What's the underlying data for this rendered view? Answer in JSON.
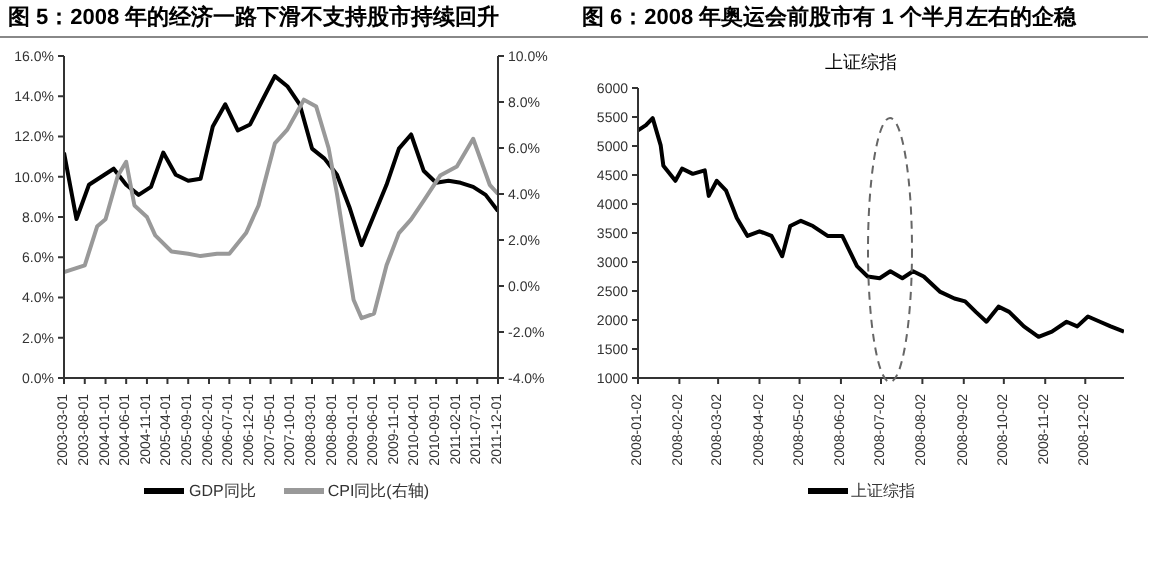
{
  "chart_data": [
    {
      "type": "line",
      "title": "图 5：2008 年的经济一路下滑不支持股市持续回升",
      "legend": "bottom",
      "xlim": [
        "2003-03-01",
        "2011-12-01"
      ],
      "xticks": [
        "2003-03-01",
        "2003-08-01",
        "2004-01-01",
        "2004-06-01",
        "2004-11-01",
        "2005-04-01",
        "2005-09-01",
        "2006-02-01",
        "2006-07-01",
        "2006-12-01",
        "2007-05-01",
        "2007-10-01",
        "2008-03-01",
        "2008-08-01",
        "2009-01-01",
        "2009-06-01",
        "2009-11-01",
        "2010-04-01",
        "2010-09-01",
        "2011-02-01",
        "2011-07-01",
        "2011-12-01"
      ],
      "ylim": [
        0,
        16
      ],
      "yticks": [
        {
          "value": 0,
          "label": "0.0%"
        },
        {
          "value": 2,
          "label": "2.0%"
        },
        {
          "value": 4,
          "label": "4.0%"
        },
        {
          "value": 6,
          "label": "6.0%"
        },
        {
          "value": 8,
          "label": "8.0%"
        },
        {
          "value": 10,
          "label": "10.0%"
        },
        {
          "value": 12,
          "label": "12.0%"
        },
        {
          "value": 14,
          "label": "14.0%"
        },
        {
          "value": 16,
          "label": "16.0%"
        }
      ],
      "y2lim": [
        -4,
        10
      ],
      "y2ticks": [
        {
          "value": -4,
          "label": "-4.0%"
        },
        {
          "value": -2,
          "label": "-2.0%"
        },
        {
          "value": 0,
          "label": "0.0%"
        },
        {
          "value": 2,
          "label": "2.0%"
        },
        {
          "value": 4,
          "label": "4.0%"
        },
        {
          "value": 6,
          "label": "6.0%"
        },
        {
          "value": 8,
          "label": "8.0%"
        },
        {
          "value": 10,
          "label": "10.0%"
        }
      ],
      "series": [
        {
          "name": "GDP同比",
          "color": "#000000",
          "x": [
            "2003-03",
            "2003-06",
            "2003-09",
            "2003-12",
            "2004-03",
            "2004-06",
            "2004-09",
            "2004-12",
            "2005-03",
            "2005-06",
            "2005-09",
            "2005-12",
            "2006-03",
            "2006-06",
            "2006-09",
            "2006-12",
            "2007-03",
            "2007-06",
            "2007-09",
            "2007-12",
            "2008-03",
            "2008-06",
            "2008-09",
            "2008-12",
            "2009-03",
            "2009-06",
            "2009-09",
            "2009-12",
            "2010-03",
            "2010-06",
            "2010-09",
            "2010-12",
            "2011-03",
            "2011-06",
            "2011-09",
            "2011-12"
          ],
          "values": [
            11.2,
            7.9,
            9.6,
            10.0,
            10.4,
            9.6,
            9.1,
            9.5,
            11.2,
            10.1,
            9.8,
            9.9,
            12.5,
            13.6,
            12.3,
            12.6,
            13.8,
            15.0,
            14.5,
            13.6,
            11.4,
            10.9,
            10.1,
            8.5,
            6.6,
            8.1,
            9.6,
            11.4,
            12.1,
            10.3,
            9.7,
            9.8,
            9.7,
            9.5,
            9.1,
            8.3
          ]
        },
        {
          "name": "CPI同比(右轴)",
          "color": "#999999",
          "axis": "y2",
          "x": [
            "2003-03",
            "2003-08",
            "2003-11",
            "2004-01",
            "2004-04",
            "2004-06",
            "2004-08",
            "2004-11",
            "2005-01",
            "2005-05",
            "2005-09",
            "2005-12",
            "2006-04",
            "2006-07",
            "2006-11",
            "2007-02",
            "2007-06",
            "2007-09",
            "2008-01",
            "2008-04",
            "2008-07",
            "2008-09",
            "2009-01",
            "2009-03",
            "2009-06",
            "2009-09",
            "2009-12",
            "2010-03",
            "2010-06",
            "2010-10",
            "2011-02",
            "2011-06",
            "2011-08",
            "2011-10",
            "2011-12"
          ],
          "values": [
            0.6,
            0.9,
            2.6,
            2.9,
            4.8,
            5.4,
            3.5,
            3.0,
            2.2,
            1.5,
            1.4,
            1.3,
            1.4,
            1.4,
            2.3,
            3.5,
            6.2,
            6.8,
            8.1,
            7.8,
            6.0,
            4.0,
            -0.6,
            -1.4,
            -1.2,
            0.9,
            2.3,
            2.9,
            3.7,
            4.8,
            5.2,
            6.4,
            5.4,
            4.4,
            4.0
          ]
        }
      ]
    },
    {
      "type": "line",
      "title": "图 6：2008 年奥运会前股市有 1 个半月左右的企稳",
      "subtitle": "上证综指",
      "legend": "bottom",
      "xlim": [
        "2008-01-02",
        "2008-12-31"
      ],
      "xticks": [
        "2008-01-02",
        "2008-02-02",
        "2008-03-02",
        "2008-04-02",
        "2008-05-02",
        "2008-06-02",
        "2008-07-02",
        "2008-08-02",
        "2008-09-02",
        "2008-10-02",
        "2008-11-02",
        "2008-12-02"
      ],
      "ylim": [
        1000,
        6000
      ],
      "yticks": [
        1000,
        1500,
        2000,
        2500,
        3000,
        3500,
        4000,
        4500,
        5000,
        5500,
        6000
      ],
      "series": [
        {
          "name": "上证综指",
          "color": "#000000",
          "x": [
            "2008-01-02",
            "2008-01-08",
            "2008-01-13",
            "2008-01-19",
            "2008-01-21",
            "2008-01-30",
            "2008-02-04",
            "2008-02-12",
            "2008-02-21",
            "2008-02-24",
            "2008-03-01",
            "2008-03-08",
            "2008-03-16",
            "2008-03-24",
            "2008-04-02",
            "2008-04-11",
            "2008-04-19",
            "2008-04-25",
            "2008-05-03",
            "2008-05-12",
            "2008-05-23",
            "2008-06-03",
            "2008-06-14",
            "2008-06-22",
            "2008-07-01",
            "2008-07-09",
            "2008-07-18",
            "2008-07-26",
            "2008-08-03",
            "2008-08-15",
            "2008-08-26",
            "2008-09-03",
            "2008-09-11",
            "2008-09-19",
            "2008-09-28",
            "2008-10-06",
            "2008-10-17",
            "2008-10-28",
            "2008-11-07",
            "2008-11-18",
            "2008-11-26",
            "2008-12-04",
            "2008-12-13",
            "2008-12-21",
            "2008-12-31"
          ],
          "values": [
            5270,
            5360,
            5480,
            5010,
            4660,
            4400,
            4610,
            4520,
            4580,
            4140,
            4400,
            4230,
            3760,
            3450,
            3530,
            3450,
            3100,
            3620,
            3710,
            3620,
            3450,
            3450,
            2930,
            2750,
            2720,
            2840,
            2720,
            2840,
            2750,
            2490,
            2370,
            2320,
            2140,
            1970,
            2230,
            2140,
            1890,
            1710,
            1800,
            1970,
            1890,
            2060,
            1970,
            1890,
            1800
          ]
        }
      ]
    }
  ]
}
